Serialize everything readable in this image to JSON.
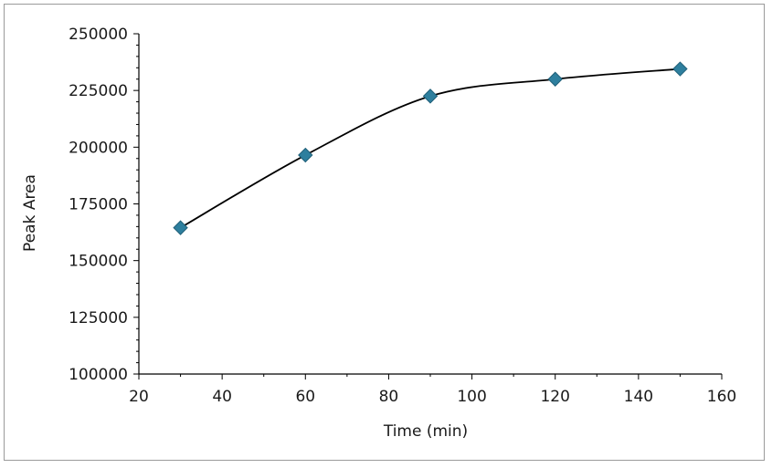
{
  "chart_data": {
    "type": "line",
    "title": "",
    "xlabel": "Time (min)",
    "ylabel": "Peak Area",
    "xlim": [
      20,
      160
    ],
    "ylim": [
      100000,
      250000
    ],
    "x_ticks": [
      20,
      40,
      60,
      80,
      100,
      120,
      140,
      160
    ],
    "y_ticks": [
      100000,
      125000,
      150000,
      175000,
      200000,
      225000,
      250000
    ],
    "x_tick_labels": [
      "20",
      "40",
      "60",
      "80",
      "100",
      "120",
      "140",
      "160"
    ],
    "y_tick_labels": [
      "100000",
      "125000",
      "150000",
      "175000",
      "200000",
      "225000",
      "250000"
    ],
    "grid": false,
    "legend": "none",
    "marker": "diamond",
    "line_style": "smooth",
    "colors": {
      "marker": "#2e7f9e",
      "marker_edge": "#1f5f78",
      "line": "#000000",
      "axis": "#000000"
    },
    "series": [
      {
        "x": [
          30,
          60,
          90,
          120,
          150
        ],
        "y": [
          164500,
          196500,
          222500,
          230000,
          234500
        ]
      }
    ]
  }
}
